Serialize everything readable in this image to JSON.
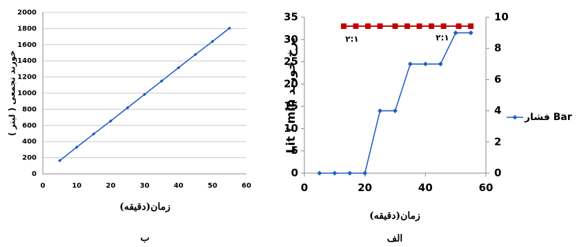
{
  "chart_data": [
    {
      "type": "line",
      "caption": "ب",
      "xlabel": "زمان(دقیقه)",
      "ylabel": "خورند تجمعی ( لیتر )",
      "x": [
        5,
        10,
        15,
        20,
        25,
        30,
        35,
        40,
        45,
        50,
        55
      ],
      "series": [
        {
          "color": "#1f5fbf",
          "values": [
            165,
            330,
            495,
            655,
            820,
            985,
            1150,
            1315,
            1480,
            1640,
            1805
          ]
        }
      ],
      "xlim": [
        0,
        60
      ],
      "xticks": [
        0,
        10,
        20,
        30,
        40,
        50,
        60
      ],
      "ylim": [
        0,
        2000
      ],
      "yticks": [
        0,
        200,
        400,
        600,
        800,
        1000,
        1200,
        1400,
        1600,
        1800,
        2000
      ],
      "grid": true
    },
    {
      "type": "line",
      "caption": "الف",
      "xlabel": "زمان(دقیقه)",
      "ylabel": "Lit / min نرخ خورند",
      "annotations": [
        "۲:۱",
        "۲:۱"
      ],
      "series": [
        {
          "color": "#c00000",
          "marker": "square",
          "x": [
            13,
            17,
            21,
            25,
            30,
            34,
            38,
            42,
            46,
            51,
            55
          ],
          "values": [
            33,
            33,
            33,
            33,
            33,
            33,
            33,
            33,
            33,
            33,
            33
          ]
        },
        {
          "name": "فشار Bar",
          "color": "#1f5fbf",
          "marker": "diamond",
          "axis": "y2",
          "x": [
            5,
            10,
            15,
            20,
            25,
            30,
            35,
            40,
            45,
            50,
            55
          ],
          "values": [
            0,
            0,
            0,
            0,
            4,
            4,
            7,
            7,
            7,
            9,
            9
          ]
        }
      ],
      "xlim": [
        0,
        60
      ],
      "xticks": [
        0,
        20,
        40,
        60
      ],
      "ylim": [
        0,
        35
      ],
      "yticks": [
        0,
        5,
        10,
        15,
        20,
        25,
        30,
        35
      ],
      "y2lim": [
        0,
        10
      ],
      "y2ticks": [
        0,
        2,
        4,
        6,
        8,
        10
      ],
      "grid": false,
      "legend": "right"
    }
  ]
}
